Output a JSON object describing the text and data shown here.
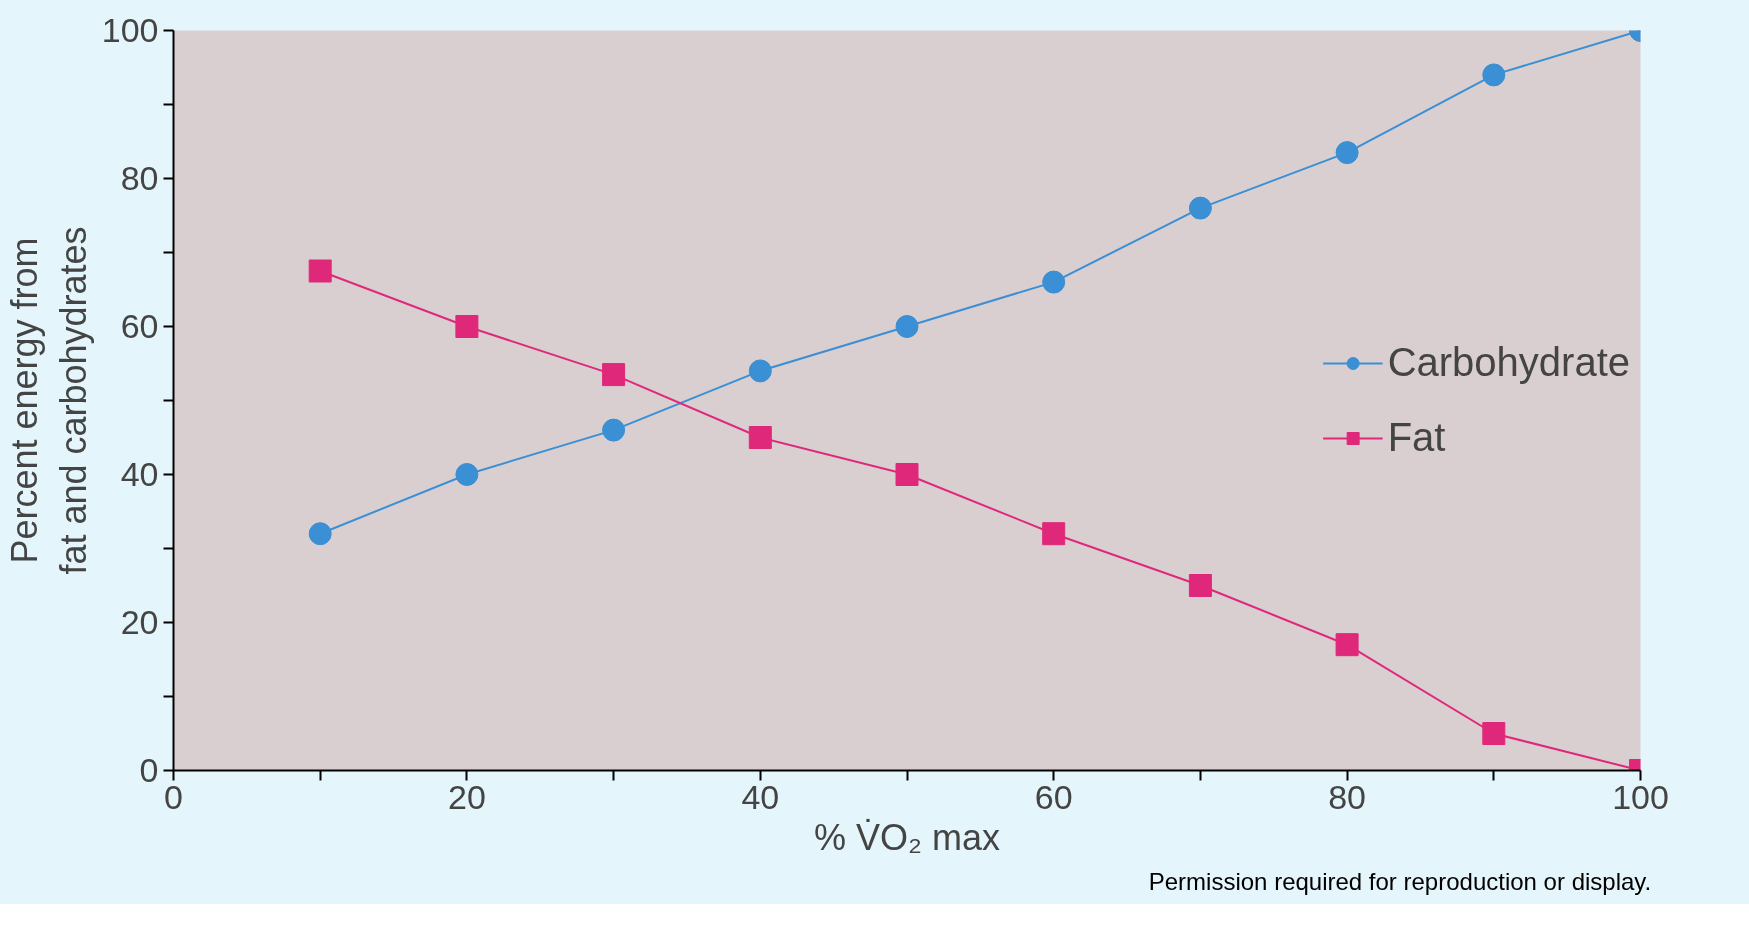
{
  "chart_data": {
    "type": "line",
    "xlabel": "% V̇O₂ max",
    "ylabel": "Percent energy from\nfat and carbohydrates",
    "x": [
      10,
      20,
      30,
      40,
      50,
      60,
      70,
      80,
      90,
      100
    ],
    "series": [
      {
        "name": "Carbohydrate",
        "color": "#3b8fd4",
        "marker": "circle",
        "values": [
          32,
          40,
          46,
          54,
          60,
          66,
          76,
          83.5,
          94,
          100
        ]
      },
      {
        "name": "Fat",
        "color": "#e0287a",
        "marker": "square",
        "values": [
          67.5,
          60,
          53.5,
          45,
          40,
          32,
          25,
          17,
          5,
          0
        ]
      }
    ],
    "xlim": [
      0,
      100
    ],
    "ylim": [
      0,
      100
    ],
    "xticks": [
      0,
      {
        "value": 10,
        "label": null
      },
      20,
      {
        "value": 30,
        "label": null
      },
      40,
      {
        "value": 50,
        "label": null
      },
      60,
      {
        "value": 70,
        "label": null
      },
      80,
      {
        "value": 90,
        "label": null
      },
      100
    ],
    "yticks": [
      0,
      {
        "value": 10,
        "label": null
      },
      20,
      {
        "value": 30,
        "label": null
      },
      40,
      {
        "value": 50,
        "label": null
      },
      60,
      {
        "value": 70,
        "label": null
      },
      80,
      {
        "value": 90,
        "label": null
      },
      100
    ],
    "grid": false,
    "legend": "right",
    "line_style": "solid",
    "annotations": [
      "Permission required for reproduction or display."
    ]
  }
}
